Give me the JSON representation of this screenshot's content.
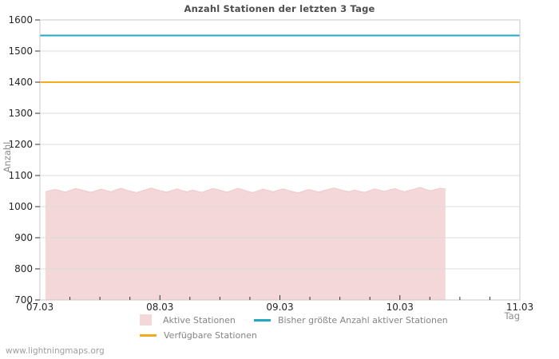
{
  "title": "Anzahl Stationen der letzten 3 Tage",
  "watermark": "www.lightningmaps.org",
  "axes": {
    "y_label": "Anzahl",
    "x_label": "Tag"
  },
  "colors": {
    "active_area": "#f4d7d9",
    "active_area_edge": "#eec9cc",
    "max_active_line": "#22a8c4",
    "available_line": "#f2ac18",
    "grid": "#dcdcdc",
    "border": "#c8c8c8",
    "tick": "#333333",
    "tick_label": "#262626"
  },
  "legend": [
    {
      "label": "Aktive Stationen",
      "swatch": "area",
      "color": "#f4d7d9"
    },
    {
      "label": "Bisher größte Anzahl aktiver Stationen",
      "swatch": "line",
      "color": "#22a8c4"
    },
    {
      "label": "Verfügbare Stationen",
      "swatch": "line",
      "color": "#f2ac18"
    }
  ],
  "chart_data": {
    "type": "area",
    "title": "Anzahl Stationen der letzten 3 Tage",
    "xlabel": "Tag",
    "ylabel": "Anzahl",
    "ylim": [
      700,
      1600
    ],
    "y_ticks": [
      700,
      800,
      900,
      1000,
      1100,
      1200,
      1300,
      1400,
      1500,
      1600
    ],
    "x_ticks": [
      "07.03",
      "08.03",
      "09.03",
      "10.03",
      "11.03"
    ],
    "x_range_days": [
      0,
      4
    ],
    "minor_tick_step_days": 0.25,
    "grid": "horizontal",
    "legend_position": "bottom",
    "series": [
      {
        "name": "Aktive Stationen",
        "type": "area",
        "color": "#f4d7d9",
        "baseline": 700,
        "x_start_days": 0.045,
        "x_end_days": 3.38,
        "values": [
          1048,
          1052,
          1055,
          1051,
          1047,
          1053,
          1058,
          1054,
          1050,
          1046,
          1051,
          1056,
          1052,
          1048,
          1054,
          1059,
          1053,
          1049,
          1045,
          1050,
          1055,
          1060,
          1054,
          1050,
          1047,
          1052,
          1057,
          1051,
          1048,
          1053,
          1049,
          1046,
          1052,
          1058,
          1055,
          1050,
          1047,
          1053,
          1059,
          1054,
          1049,
          1045,
          1051,
          1056,
          1052,
          1048,
          1053,
          1057,
          1052,
          1048,
          1044,
          1050,
          1055,
          1051,
          1047,
          1052,
          1056,
          1060,
          1055,
          1051,
          1048,
          1053,
          1049,
          1046,
          1051,
          1057,
          1053,
          1049,
          1054,
          1058,
          1052,
          1048,
          1053,
          1057,
          1062,
          1056,
          1051,
          1055,
          1059,
          1057
        ]
      },
      {
        "name": "Bisher größte Anzahl aktiver Stationen",
        "type": "hline",
        "color": "#22a8c4",
        "value": 1550
      },
      {
        "name": "Verfügbare Stationen",
        "type": "hline",
        "color": "#f2ac18",
        "value": 1400
      }
    ]
  }
}
